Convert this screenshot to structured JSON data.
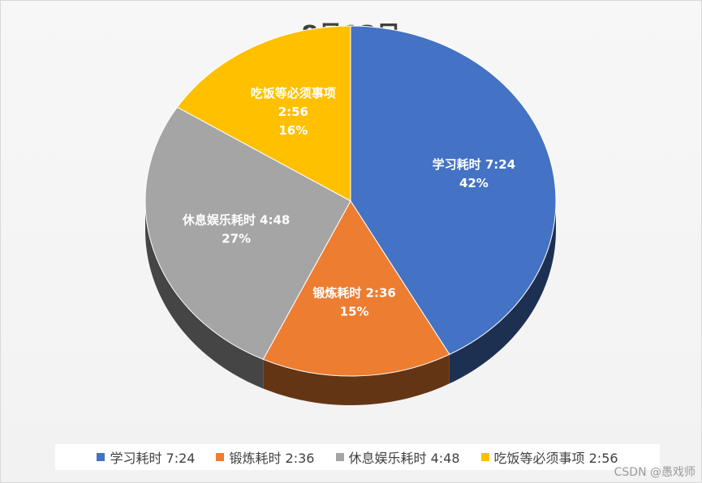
{
  "chart_data": {
    "type": "pie",
    "title": "8月13日",
    "categories": [
      "学习耗时 7:24",
      "锻炼耗时 2:36",
      "休息娱乐耗时 4:48",
      "吃饭等必须事项 2:56"
    ],
    "slice_names": [
      "学习耗时",
      "锻炼耗时",
      "休息娱乐耗时",
      "吃饭等必须事项"
    ],
    "time_labels": [
      "7:24",
      "2:36",
      "4:48",
      "2:56"
    ],
    "values": [
      42,
      15,
      27,
      16
    ],
    "percent_labels": [
      "42%",
      "15%",
      "27%",
      "16%"
    ],
    "colors": [
      "#4472c4",
      "#ed7d31",
      "#a5a5a5",
      "#ffc000"
    ],
    "legend_position": "bottom",
    "style": "3d"
  },
  "watermark": "CSDN @愚戏师"
}
